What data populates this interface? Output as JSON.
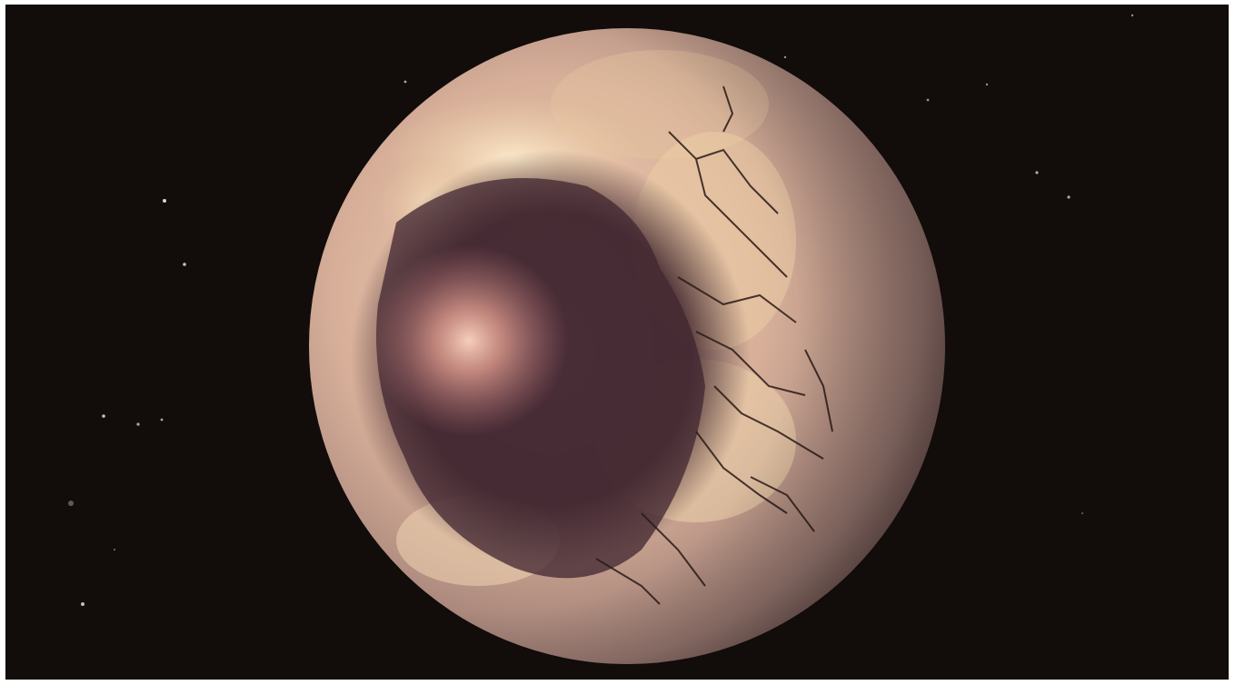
{
  "image": {
    "subject": "planet-in-space",
    "colors": {
      "background": "#120c0b",
      "border": "#ffffff",
      "planet_light": "#f3d9b4",
      "planet_mid": "#c39a86",
      "planet_shadow": "#3a262a",
      "eye_glow": "#f7c2a8",
      "eye_dark": "#4a2f37",
      "crack": "#2a1a18",
      "star": "#f4ece0"
    }
  }
}
